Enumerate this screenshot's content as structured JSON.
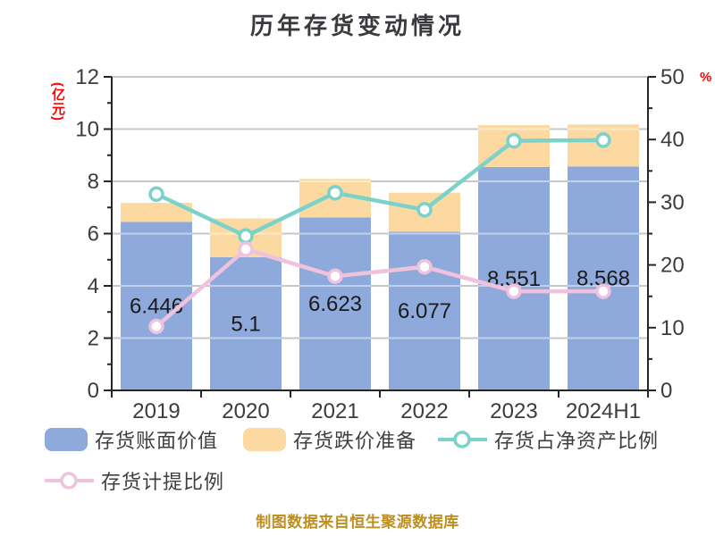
{
  "chart_data": {
    "type": "bar",
    "subtype": "stacked-bar-with-lines-dual-axis",
    "title": "历年存货变动情况",
    "categories": [
      "2019",
      "2020",
      "2021",
      "2022",
      "2023",
      "2024H1"
    ],
    "series": [
      {
        "name": "存货账面价值",
        "type": "bar",
        "stack": true,
        "axis": "left",
        "color": "#8EA9DB",
        "values": [
          6.446,
          5.1,
          6.623,
          6.077,
          8.551,
          8.568
        ],
        "labels": [
          "6.446",
          "5.1",
          "6.623",
          "6.077",
          "8.551",
          "8.568"
        ]
      },
      {
        "name": "存货跌价准备",
        "type": "bar",
        "stack": true,
        "axis": "left",
        "color": "#FBD9A1",
        "values": [
          0.73,
          1.48,
          1.47,
          1.49,
          1.6,
          1.61
        ]
      },
      {
        "name": "存货占净资产比例",
        "type": "line",
        "axis": "right",
        "color": "#7AD2CB",
        "values": [
          31.3,
          24.6,
          31.5,
          28.8,
          39.8,
          39.9
        ]
      },
      {
        "name": "存货计提比例",
        "type": "line",
        "axis": "right",
        "color": "#EFC2DE",
        "values": [
          10.2,
          22.5,
          18.2,
          19.7,
          15.8,
          15.8
        ]
      }
    ],
    "left_axis": {
      "min": 0,
      "max": 12,
      "ticks": [
        0,
        2,
        4,
        6,
        8,
        10,
        12
      ],
      "minor_ticks": [
        1,
        3,
        5,
        7,
        9,
        11
      ],
      "unit": "(亿元)",
      "unit_color": "#FF0000"
    },
    "right_axis": {
      "min": 0,
      "max": 50,
      "ticks": [
        0,
        10,
        20,
        30,
        40,
        50
      ],
      "minor_ticks": [
        5,
        15,
        25,
        35,
        45
      ],
      "unit": "%",
      "unit_color": "#FF0000"
    },
    "grid": true,
    "legend_position": "bottom",
    "colors": {
      "title": "#3A3A3E",
      "axis_line": "#262626",
      "tick_text": "#3C3C3C",
      "grid_line": "#999999",
      "data_label": "#1A1A1A",
      "legend_text": "#3E3E3E",
      "marker_fill": "#FFFFFF"
    }
  },
  "footer": {
    "text": "制图数据来自恒生聚源数据库",
    "color": "#BE8E1E"
  }
}
